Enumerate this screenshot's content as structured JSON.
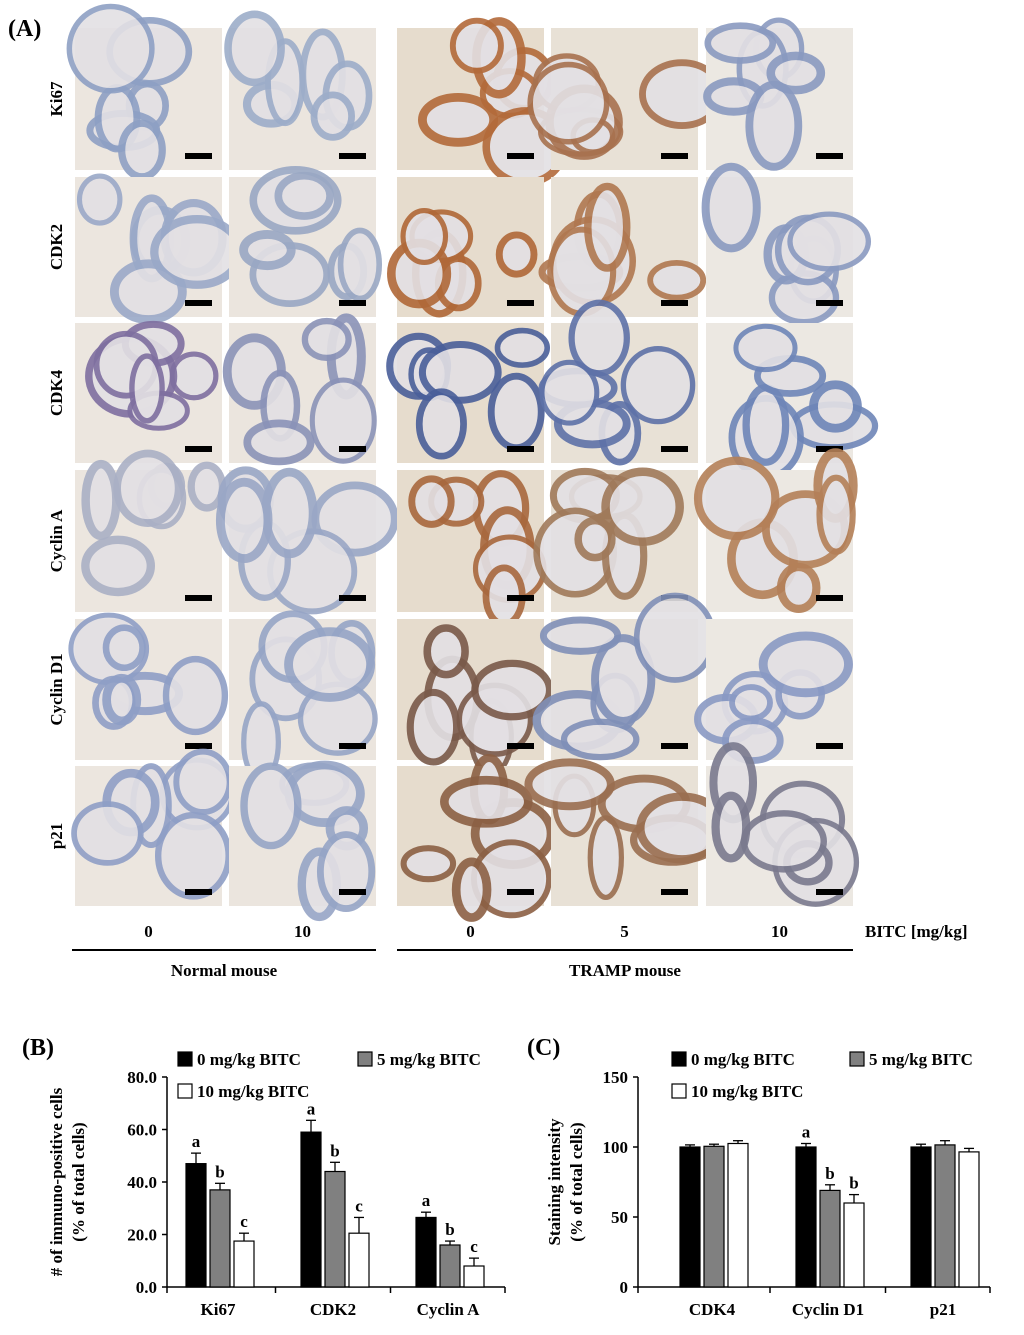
{
  "panel_labels": [
    "(A)",
    "(B)",
    "(C)"
  ],
  "panel_a": {
    "rows": [
      "Ki67",
      "CDK2",
      "CDK4",
      "Cyclin A",
      "Cyclin D1",
      "p21"
    ],
    "doses": [
      "0",
      "10",
      "0",
      "5",
      "10"
    ],
    "dose_unit": "BITC [mg/kg]",
    "groups": [
      "Normal mouse",
      "TRAMP mouse"
    ]
  },
  "chart_data": [
    {
      "type": "bar",
      "ylabel": [
        "# of immuno-positive cells",
        "(% of total cells)"
      ],
      "categories": [
        "Ki67",
        "CDK2",
        "Cyclin A"
      ],
      "ylim": [
        0,
        80
      ],
      "yticks": [
        {
          "value": 0,
          "label": "0.0"
        },
        {
          "value": 20,
          "label": "20.0"
        },
        {
          "value": 40,
          "label": "40.0"
        },
        {
          "value": 60,
          "label": "60.0"
        },
        {
          "value": 80,
          "label": "80.0"
        }
      ],
      "series": [
        {
          "name": "0 mg/kg BITC",
          "color": "#000000",
          "values": [
            47,
            59,
            26.5
          ],
          "errors": [
            4,
            4.5,
            2
          ],
          "annotations": [
            "a",
            "a",
            "a"
          ]
        },
        {
          "name": "5 mg/kg BITC",
          "color": "#808080",
          "values": [
            37,
            44,
            16
          ],
          "errors": [
            2.5,
            3.5,
            1.5
          ],
          "annotations": [
            "b",
            "b",
            "b"
          ]
        },
        {
          "name": "10 mg/kg BITC",
          "color": "#ffffff",
          "values": [
            17.5,
            20.5,
            8
          ],
          "errors": [
            3,
            6,
            3
          ],
          "annotations": [
            "c",
            "c",
            "c"
          ]
        }
      ]
    },
    {
      "type": "bar",
      "ylabel": [
        "Staining intensity",
        "(% of total cells)"
      ],
      "categories": [
        "CDK4",
        "Cyclin D1",
        "p21"
      ],
      "ylim": [
        0,
        150
      ],
      "yticks": [
        0,
        50,
        100,
        150
      ],
      "series": [
        {
          "name": "0 mg/kg BITC",
          "color": "#000000",
          "values": [
            100,
            100,
            100
          ],
          "errors": [
            1.5,
            2.5,
            2
          ],
          "annotations": [
            null,
            "a",
            null
          ]
        },
        {
          "name": "5 mg/kg BITC",
          "color": "#808080",
          "values": [
            100.5,
            69,
            101.5
          ],
          "errors": [
            1.5,
            4,
            3
          ],
          "annotations": [
            null,
            "b",
            null
          ]
        },
        {
          "name": "10 mg/kg BITC",
          "color": "#ffffff",
          "values": [
            102.5,
            60,
            96.5
          ],
          "errors": [
            2,
            6,
            2.5
          ],
          "annotations": [
            null,
            "b",
            null
          ]
        }
      ]
    }
  ]
}
